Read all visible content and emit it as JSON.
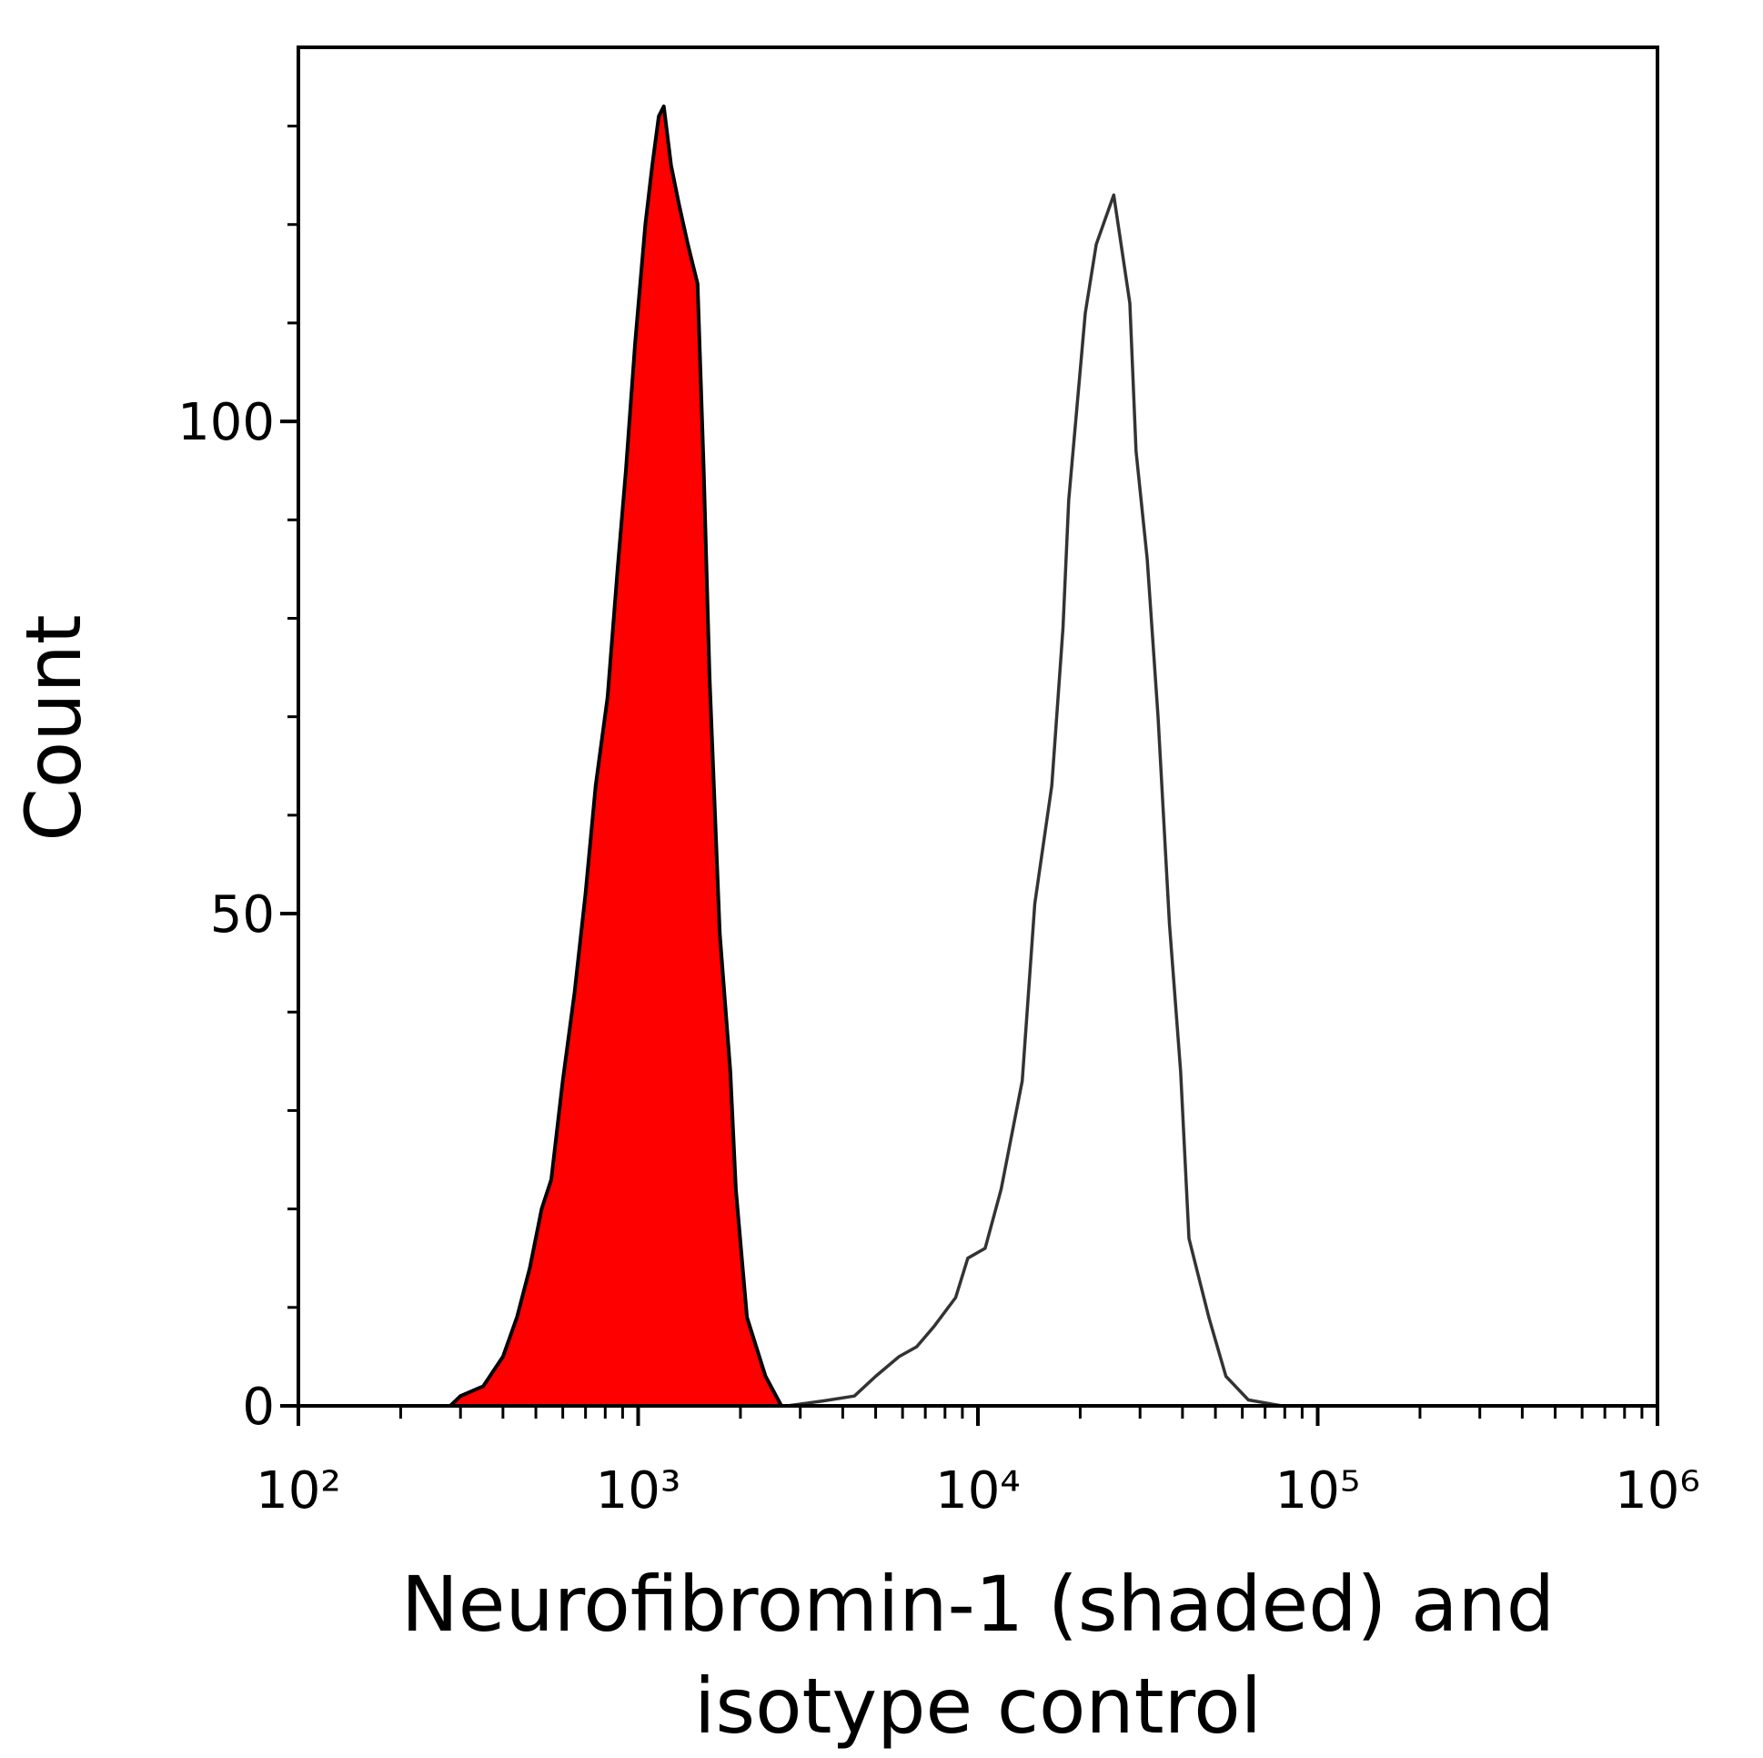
{
  "chart_data": {
    "type": "histogram-overlay",
    "xlabel": [
      "Neurofibromin-1 (shaded) and",
      "isotype control"
    ],
    "ylabel": "Count",
    "xlog": true,
    "xlim": [
      100,
      1000000
    ],
    "xticks": [
      {
        "value": 100,
        "label": "10²"
      },
      {
        "value": 1000,
        "label": "10³"
      },
      {
        "value": 10000,
        "label": "10⁴"
      },
      {
        "value": 100000,
        "label": "10⁵"
      },
      {
        "value": 1000000,
        "label": "10⁶"
      }
    ],
    "xminor_ticks": [
      200,
      300,
      400,
      500,
      600,
      700,
      800,
      900,
      2000,
      3000,
      4000,
      5000,
      6000,
      7000,
      8000,
      9000,
      20000,
      30000,
      40000,
      50000,
      60000,
      70000,
      80000,
      90000,
      200000,
      300000,
      400000,
      500000,
      600000,
      700000,
      800000,
      900000
    ],
    "ylim": [
      0,
      138
    ],
    "yticks": [
      0,
      50,
      100
    ],
    "yminor_ticks": [
      10,
      20,
      30,
      40,
      60,
      70,
      80,
      90,
      110,
      120,
      130
    ],
    "series": [
      {
        "color": "#ff0000",
        "line_color": "#000000",
        "filled": true,
        "x": [
          100,
          200,
          280,
          300,
          350,
          400,
          440,
          480,
          520,
          555,
          600,
          650,
          700,
          750,
          813,
          870,
          920,
          980,
          1050,
          1100,
          1150,
          1190,
          1250,
          1320,
          1400,
          1496,
          1560,
          1622,
          1738,
          1867,
          1939,
          2090,
          2370,
          2640
        ],
        "values": [
          0,
          0,
          0,
          1,
          2,
          5,
          9,
          14,
          20,
          23,
          33,
          42,
          52,
          63,
          72,
          85,
          95,
          108,
          120,
          126,
          131,
          132,
          126,
          122,
          118,
          114,
          95,
          74,
          48,
          34,
          22,
          9,
          3,
          0
        ]
      },
      {
        "color": "#333333",
        "filled": false,
        "x": [
          100,
          1000,
          2750,
          3500,
          4330,
          5000,
          5860,
          6600,
          7400,
          8600,
          9340,
          10500,
          11700,
          13500,
          14700,
          16500,
          17800,
          18500,
          20700,
          22300,
          25100,
          28000,
          29200,
          31500,
          33900,
          36600,
          39500,
          41800,
          47800,
          53700,
          62500,
          78500,
          1000000
        ],
        "values": [
          0,
          0,
          0,
          0.5,
          1,
          3,
          5,
          6,
          8,
          11,
          15,
          16,
          22,
          33,
          51,
          63,
          79,
          92,
          111,
          118,
          123,
          112,
          97,
          86,
          70,
          49,
          34,
          17,
          9,
          3,
          0.6,
          0,
          0
        ]
      }
    ]
  }
}
